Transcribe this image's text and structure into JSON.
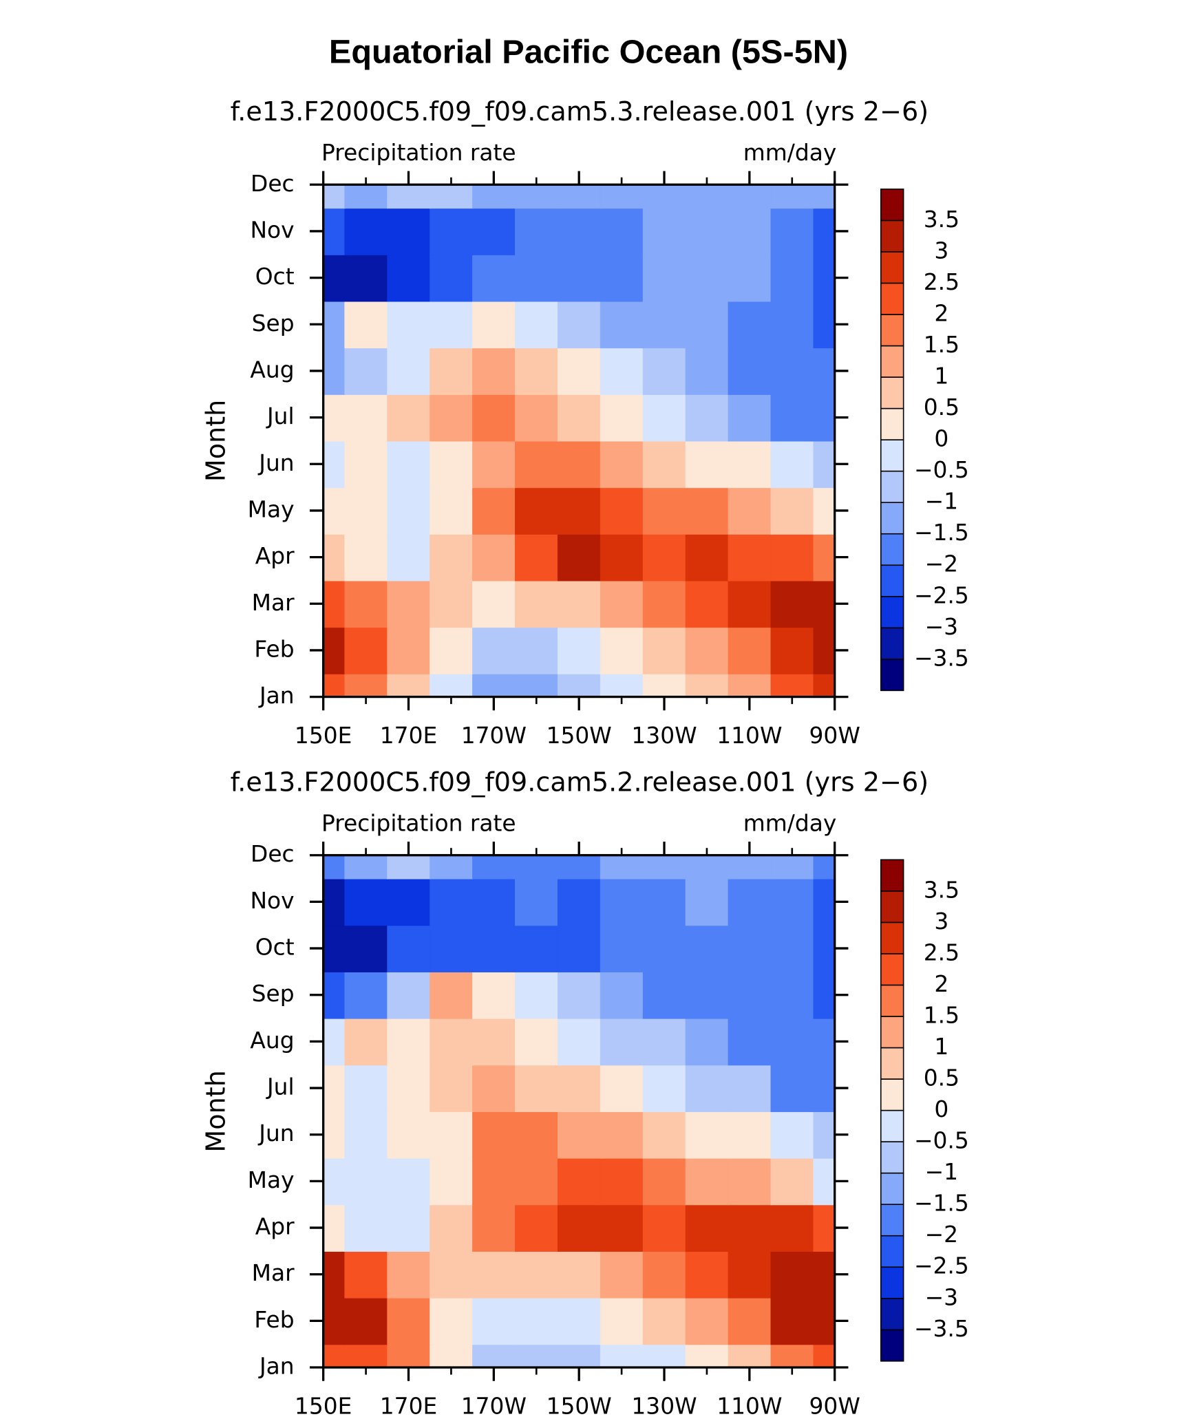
{
  "title": "Equatorial Pacific Ocean (5S-5N)",
  "chart_data": [
    {
      "type": "contour",
      "title": "f.e13.F2000C5.f09_f09.cam5.3.release.001 (yrs 2−6)",
      "subtitle_left": "Precipitation rate",
      "subtitle_right": "mm/day",
      "y_label": "Month",
      "x": [
        150,
        160,
        170,
        180,
        190,
        200,
        210,
        220,
        230,
        240,
        250,
        260,
        270
      ],
      "categories": [
        "Jan",
        "Feb",
        "Mar",
        "Apr",
        "May",
        "Jun",
        "Jul",
        "Aug",
        "Sep",
        "Oct",
        "Nov",
        "Dec"
      ],
      "xlim": [
        150,
        270
      ],
      "xticks": [
        {
          "value": 150,
          "label": "150E"
        },
        {
          "value": 170,
          "label": "170E"
        },
        {
          "value": 190,
          "label": "170W"
        },
        {
          "value": 210,
          "label": "150W"
        },
        {
          "value": 230,
          "label": "130W"
        },
        {
          "value": 250,
          "label": "110W"
        },
        {
          "value": 270,
          "label": "90W"
        }
      ],
      "z": [
        [
          2.5,
          2.0,
          1.0,
          0.0,
          -1.0,
          -1.0,
          -0.5,
          -0.3,
          0.3,
          0.8,
          1.5,
          2.5,
          3.0
        ],
        [
          3.5,
          2.5,
          1.2,
          0.2,
          -0.8,
          -0.5,
          -0.2,
          0.3,
          0.8,
          1.3,
          2.0,
          2.8,
          3.3
        ],
        [
          2.2,
          1.8,
          1.2,
          0.6,
          0.3,
          0.6,
          0.8,
          1.3,
          1.8,
          2.2,
          2.8,
          3.2,
          3.3
        ],
        [
          0.8,
          0.3,
          -0.3,
          0.7,
          1.5,
          2.3,
          3.2,
          2.8,
          2.5,
          2.6,
          2.3,
          2.2,
          2.0
        ],
        [
          0.4,
          0.2,
          -0.3,
          0.5,
          1.6,
          2.6,
          2.6,
          2.4,
          2.0,
          1.6,
          1.3,
          0.8,
          0.5
        ],
        [
          -0.3,
          0.2,
          -0.4,
          0.5,
          1.2,
          1.8,
          1.6,
          1.2,
          0.8,
          0.4,
          0.1,
          -0.3,
          -0.6
        ],
        [
          0.2,
          0.4,
          0.6,
          1.2,
          1.6,
          1.2,
          0.8,
          0.3,
          -0.2,
          -0.6,
          -1.0,
          -1.8,
          -1.8
        ],
        [
          -1.0,
          -0.6,
          -0.2,
          0.6,
          1.2,
          0.7,
          0.2,
          -0.4,
          -0.8,
          -1.2,
          -1.8,
          -1.9,
          -1.9
        ],
        [
          -1.2,
          0.3,
          -0.2,
          -0.3,
          0.1,
          -0.3,
          -0.7,
          -1.1,
          -1.3,
          -1.4,
          -1.8,
          -1.9,
          -2.0
        ],
        [
          -3.2,
          -3.3,
          -2.6,
          -2.0,
          -1.9,
          -1.6,
          -1.6,
          -1.6,
          -1.4,
          -1.4,
          -1.4,
          -1.8,
          -2.2
        ],
        [
          -2.3,
          -2.5,
          -2.6,
          -2.3,
          -2.2,
          -1.9,
          -1.8,
          -1.6,
          -1.4,
          -1.3,
          -1.4,
          -1.8,
          -2.0
        ],
        [
          -0.8,
          -1.0,
          -0.6,
          -0.9,
          -1.3,
          -1.4,
          -1.4,
          -1.4,
          -1.3,
          -1.3,
          -1.3,
          -1.3,
          -1.2
        ]
      ],
      "levels": [
        {
          "value": -3.5,
          "label": "−3.5"
        },
        {
          "value": -3,
          "label": "−3"
        },
        {
          "value": -2.5,
          "label": "−2.5"
        },
        {
          "value": -2,
          "label": "−2"
        },
        {
          "value": -1.5,
          "label": "−1.5"
        },
        {
          "value": -1,
          "label": "−1"
        },
        {
          "value": -0.5,
          "label": "−0.5"
        },
        0,
        0.5,
        1,
        1.5,
        2,
        2.5,
        3,
        3.5
      ],
      "colors": [
        "#00007f",
        "#0518a8",
        "#0a35e0",
        "#2559f2",
        "#4f80f7",
        "#87a9f9",
        "#b2c8fb",
        "#d6e5fd",
        "#fde7d6",
        "#fdc8aa",
        "#fca57e",
        "#fb7a4a",
        "#f55121",
        "#d93208",
        "#b51c04",
        "#8b0000"
      ]
    },
    {
      "type": "contour",
      "title": "f.e13.F2000C5.f09_f09.cam5.2.release.001 (yrs 2−6)",
      "subtitle_left": "Precipitation rate",
      "subtitle_right": "mm/day",
      "y_label": "Month",
      "x": [
        150,
        160,
        170,
        180,
        190,
        200,
        210,
        220,
        230,
        240,
        250,
        260,
        270
      ],
      "categories": [
        "Jan",
        "Feb",
        "Mar",
        "Apr",
        "May",
        "Jun",
        "Jul",
        "Aug",
        "Sep",
        "Oct",
        "Nov",
        "Dec"
      ],
      "xlim": [
        150,
        270
      ],
      "xticks": [
        {
          "value": 150,
          "label": "150E"
        },
        {
          "value": 170,
          "label": "170E"
        },
        {
          "value": 190,
          "label": "170W"
        },
        {
          "value": 210,
          "label": "150W"
        },
        {
          "value": 230,
          "label": "130W"
        },
        {
          "value": 250,
          "label": "110W"
        },
        {
          "value": 270,
          "label": "90W"
        }
      ],
      "z": [
        [
          2.3,
          2.4,
          1.6,
          0.4,
          -0.8,
          -0.8,
          -0.6,
          -0.4,
          -0.2,
          0.2,
          0.8,
          1.6,
          2.5
        ],
        [
          3.5,
          3.3,
          2.0,
          0.5,
          -0.4,
          -0.4,
          -0.2,
          0.2,
          0.6,
          1.2,
          1.8,
          3.2,
          3.5
        ],
        [
          3.3,
          2.5,
          1.5,
          0.6,
          0.6,
          0.6,
          0.8,
          1.3,
          1.7,
          2.2,
          2.7,
          3.3,
          3.5
        ],
        [
          0.5,
          -0.2,
          -0.3,
          0.7,
          1.6,
          2.4,
          2.6,
          2.6,
          2.4,
          2.8,
          2.9,
          2.6,
          2.5
        ],
        [
          -0.4,
          -0.3,
          -0.2,
          0.5,
          1.6,
          2.0,
          2.2,
          2.1,
          1.8,
          1.5,
          1.2,
          0.8,
          0.0
        ],
        [
          0.3,
          -0.2,
          0.2,
          0.5,
          1.8,
          1.6,
          1.4,
          1.2,
          0.8,
          0.5,
          0.3,
          -0.4,
          -0.9
        ],
        [
          0.2,
          -0.4,
          0.2,
          0.6,
          1.4,
          1.0,
          0.6,
          0.3,
          -0.2,
          -0.5,
          -0.8,
          -1.5,
          -1.7
        ],
        [
          -0.2,
          0.6,
          0.2,
          0.8,
          0.6,
          0.3,
          -0.2,
          -0.6,
          -0.9,
          -1.2,
          -1.7,
          -1.9,
          -1.8
        ],
        [
          -2.1,
          -1.8,
          -0.6,
          1.1,
          0.4,
          -0.4,
          -0.9,
          -1.3,
          -1.5,
          -1.6,
          -1.8,
          -1.9,
          -2.0
        ],
        [
          -3.3,
          -3.0,
          -2.4,
          -2.0,
          -2.0,
          -2.0,
          -2.0,
          -1.6,
          -1.5,
          -1.5,
          -1.8,
          -1.8,
          -2.2
        ],
        [
          -3.0,
          -2.8,
          -2.6,
          -2.3,
          -2.1,
          -1.9,
          -2.0,
          -1.8,
          -1.5,
          -1.4,
          -1.8,
          -1.8,
          -2.1
        ],
        [
          -1.5,
          -1.0,
          -0.8,
          -1.1,
          -1.6,
          -1.6,
          -1.5,
          -1.4,
          -1.4,
          -1.4,
          -1.4,
          -1.4,
          -1.5
        ]
      ],
      "levels": [
        {
          "value": -3.5,
          "label": "−3.5"
        },
        {
          "value": -3,
          "label": "−3"
        },
        {
          "value": -2.5,
          "label": "−2.5"
        },
        {
          "value": -2,
          "label": "−2"
        },
        {
          "value": -1.5,
          "label": "−1.5"
        },
        {
          "value": -1,
          "label": "−1"
        },
        {
          "value": -0.5,
          "label": "−0.5"
        },
        0,
        0.5,
        1,
        1.5,
        2,
        2.5,
        3,
        3.5
      ],
      "colors": [
        "#00007f",
        "#0518a8",
        "#0a35e0",
        "#2559f2",
        "#4f80f7",
        "#87a9f9",
        "#b2c8fb",
        "#d6e5fd",
        "#fde7d6",
        "#fdc8aa",
        "#fca57e",
        "#fb7a4a",
        "#f55121",
        "#d93208",
        "#b51c04",
        "#8b0000"
      ]
    }
  ]
}
